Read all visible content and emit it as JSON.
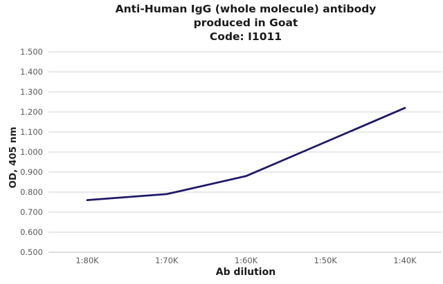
{
  "chart_data": {
    "type": "line",
    "title_lines": [
      "Anti-Human IgG (whole molecule) antibody",
      "produced in Goat",
      "Code: I1011"
    ],
    "xlabel": "Ab dilution",
    "ylabel": "OD, 405 nm",
    "categories": [
      "1:80K",
      "1:70K",
      "1:60K",
      "1:50K",
      "1:40K"
    ],
    "series": [
      {
        "name": "OD 405 nm",
        "values": [
          0.76,
          0.79,
          0.88,
          1.05,
          1.22
        ]
      }
    ],
    "ylim": [
      0.5,
      1.5
    ],
    "y_tick_step": 0.1,
    "y_tick_labels": [
      "0.500",
      "0.600",
      "0.700",
      "0.800",
      "0.900",
      "1.000",
      "1.100",
      "1.200",
      "1.300",
      "1.400",
      "1.500"
    ],
    "grid": true,
    "legend": "none",
    "colors": {
      "line": "#1e1966",
      "grid": "#d2d2d2",
      "axis_line": "#bdbdbd",
      "tick_label": "#595959",
      "title_text": "#1a1a1a",
      "background": "#ffffff"
    }
  }
}
